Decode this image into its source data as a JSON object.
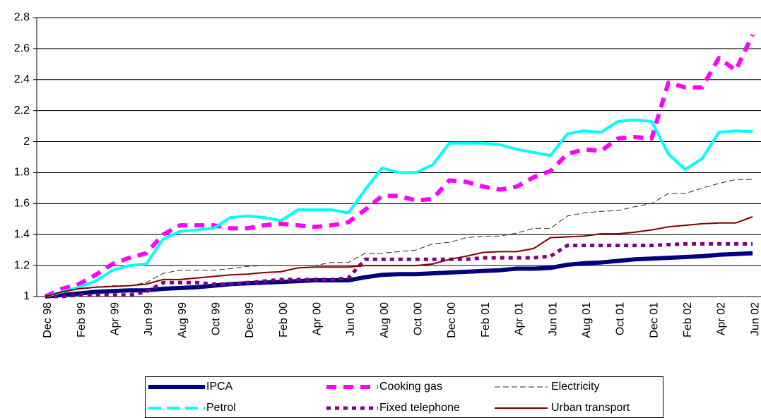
{
  "chart_data": {
    "type": "line",
    "categories": [
      "Dec 98",
      null,
      "Feb 99",
      null,
      "Apr 99",
      null,
      "Jun 99",
      null,
      "Aug 99",
      null,
      "Oct 99",
      null,
      "Dec 99",
      null,
      "Feb 00",
      null,
      "Apr 00",
      null,
      "Jun 00",
      null,
      "Aug 00",
      null,
      "Oct 00",
      null,
      "Dec 00",
      null,
      "Feb 01",
      null,
      "Apr 01",
      null,
      "Jun 01",
      null,
      "Aug 01",
      null,
      "Oct 01",
      null,
      "Dec 01",
      null,
      "Feb 02",
      null,
      "Apr 02",
      null,
      "Jun 02"
    ],
    "series": [
      {
        "name": "IPCA",
        "color": "#000080",
        "values": [
          1.0,
          1.01,
          1.02,
          1.03,
          1.035,
          1.04,
          1.04,
          1.05,
          1.055,
          1.06,
          1.07,
          1.08,
          1.085,
          1.09,
          1.095,
          1.1,
          1.105,
          1.105,
          1.105,
          1.125,
          1.14,
          1.145,
          1.145,
          1.15,
          1.155,
          1.16,
          1.165,
          1.17,
          1.18,
          1.18,
          1.185,
          1.205,
          1.215,
          1.22,
          1.23,
          1.24,
          1.245,
          1.25,
          1.255,
          1.26,
          1.27,
          1.275,
          1.28
        ]
      },
      {
        "name": "Cooking gas",
        "color": "#ff00ff",
        "values": [
          1.0,
          1.05,
          1.08,
          1.14,
          1.21,
          1.25,
          1.28,
          1.4,
          1.46,
          1.46,
          1.46,
          1.44,
          1.44,
          1.46,
          1.47,
          1.46,
          1.45,
          1.46,
          1.48,
          1.56,
          1.65,
          1.65,
          1.62,
          1.63,
          1.75,
          1.74,
          1.71,
          1.69,
          1.71,
          1.77,
          1.81,
          1.92,
          1.95,
          1.94,
          2.02,
          2.03,
          2.02,
          2.38,
          2.35,
          2.35,
          2.54,
          2.46,
          2.69
        ]
      },
      {
        "name": "Electricity",
        "color": "#333300",
        "values": [
          1.0,
          1.03,
          1.05,
          1.06,
          1.07,
          1.07,
          1.09,
          1.15,
          1.17,
          1.17,
          1.17,
          1.18,
          1.195,
          1.2,
          1.2,
          1.2,
          1.2,
          1.22,
          1.22,
          1.28,
          1.28,
          1.29,
          1.3,
          1.34,
          1.35,
          1.38,
          1.39,
          1.39,
          1.41,
          1.44,
          1.44,
          1.52,
          1.54,
          1.55,
          1.555,
          1.58,
          1.6,
          1.665,
          1.665,
          1.7,
          1.73,
          1.755,
          1.755
        ]
      },
      {
        "name": "Petrol",
        "color": "#00ffff",
        "values": [
          1.0,
          1.03,
          1.06,
          1.1,
          1.17,
          1.2,
          1.21,
          1.37,
          1.42,
          1.43,
          1.44,
          1.51,
          1.52,
          1.51,
          1.49,
          1.56,
          1.56,
          1.56,
          1.54,
          1.69,
          1.83,
          1.8,
          1.8,
          1.85,
          1.99,
          1.99,
          1.99,
          1.98,
          1.95,
          1.93,
          1.91,
          2.05,
          2.07,
          2.06,
          2.13,
          2.14,
          2.13,
          1.92,
          1.82,
          1.89,
          2.06,
          2.07,
          2.065
        ]
      },
      {
        "name": "Fixed telephone",
        "color": "#800080",
        "values": [
          1.0,
          1.0,
          1.01,
          1.01,
          1.01,
          1.01,
          1.03,
          1.09,
          1.09,
          1.09,
          1.08,
          1.08,
          1.09,
          1.1,
          1.11,
          1.11,
          1.11,
          1.11,
          1.12,
          1.24,
          1.24,
          1.24,
          1.24,
          1.24,
          1.24,
          1.24,
          1.25,
          1.25,
          1.25,
          1.25,
          1.26,
          1.33,
          1.33,
          1.33,
          1.33,
          1.33,
          1.33,
          1.335,
          1.34,
          1.34,
          1.34,
          1.34,
          1.34
        ]
      },
      {
        "name": "Urban transport",
        "color": "#800000",
        "values": [
          1.0,
          1.03,
          1.05,
          1.06,
          1.065,
          1.07,
          1.08,
          1.11,
          1.11,
          1.12,
          1.13,
          1.14,
          1.145,
          1.155,
          1.16,
          1.185,
          1.19,
          1.19,
          1.19,
          1.2,
          1.2,
          1.2,
          1.2,
          1.21,
          1.24,
          1.26,
          1.285,
          1.29,
          1.29,
          1.31,
          1.38,
          1.385,
          1.39,
          1.405,
          1.405,
          1.415,
          1.43,
          1.45,
          1.46,
          1.47,
          1.475,
          1.475,
          1.515
        ]
      }
    ],
    "ylim": [
      1,
      2.8
    ],
    "yticks": [
      1,
      1.2,
      1.4,
      1.6,
      1.8,
      2,
      2.2,
      2.4,
      2.6,
      2.8
    ],
    "grid": true,
    "legend": "bottom"
  }
}
